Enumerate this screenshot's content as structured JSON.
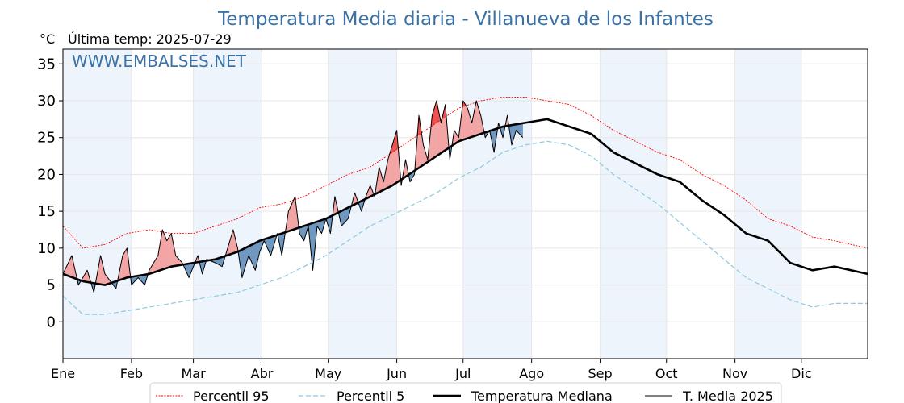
{
  "chart_data": {
    "type": "line",
    "title": "Temperatura Media diaria - Villanueva de los Infantes",
    "unit_label": "°C",
    "last_temp_label": "Última temp: 2025-07-29",
    "watermark": "WWW.EMBALSES.NET",
    "ylim": [
      -5,
      37
    ],
    "yticks": [
      0,
      5,
      10,
      15,
      20,
      25,
      30,
      35
    ],
    "xlim": [
      1,
      365
    ],
    "months": [
      "Ene",
      "Feb",
      "Mar",
      "Abr",
      "May",
      "Jun",
      "Jul",
      "Ago",
      "Sep",
      "Oct",
      "Nov",
      "Dic"
    ],
    "month_start_days": [
      1,
      32,
      60,
      91,
      121,
      152,
      182,
      213,
      244,
      274,
      305,
      335
    ],
    "grid": true,
    "legend_position": "bottom",
    "colors": {
      "p95": "#ff0000",
      "p5": "#8ec8df",
      "median": "#000000",
      "year2025": "#000000",
      "above_fill": "#f3a5a5",
      "below_fill": "#6f98c0",
      "shade": "#eef4fb",
      "title": "#3a72a8"
    },
    "series": [
      {
        "name": "Percentil 95",
        "key": "p95",
        "points": [
          [
            1,
            13
          ],
          [
            10,
            10
          ],
          [
            20,
            10.5
          ],
          [
            30,
            12
          ],
          [
            40,
            12.5
          ],
          [
            50,
            12
          ],
          [
            60,
            12
          ],
          [
            70,
            13
          ],
          [
            80,
            14
          ],
          [
            90,
            15.5
          ],
          [
            100,
            16
          ],
          [
            110,
            17
          ],
          [
            120,
            18.5
          ],
          [
            130,
            20
          ],
          [
            140,
            21
          ],
          [
            150,
            23
          ],
          [
            160,
            25
          ],
          [
            170,
            27
          ],
          [
            180,
            29
          ],
          [
            190,
            30
          ],
          [
            200,
            30.5
          ],
          [
            210,
            30.5
          ],
          [
            220,
            30
          ],
          [
            230,
            29.5
          ],
          [
            240,
            28
          ],
          [
            250,
            26
          ],
          [
            260,
            24.5
          ],
          [
            270,
            23
          ],
          [
            280,
            22
          ],
          [
            290,
            20
          ],
          [
            300,
            18.5
          ],
          [
            310,
            16.5
          ],
          [
            320,
            14
          ],
          [
            330,
            13
          ],
          [
            340,
            11.5
          ],
          [
            350,
            11
          ],
          [
            365,
            10
          ]
        ]
      },
      {
        "name": "Percentil 5",
        "key": "p5",
        "points": [
          [
            1,
            3.5
          ],
          [
            10,
            1
          ],
          [
            20,
            1
          ],
          [
            30,
            1.5
          ],
          [
            40,
            2
          ],
          [
            50,
            2.5
          ],
          [
            60,
            3
          ],
          [
            70,
            3.5
          ],
          [
            80,
            4
          ],
          [
            90,
            5
          ],
          [
            100,
            6
          ],
          [
            110,
            7.5
          ],
          [
            120,
            9
          ],
          [
            130,
            11
          ],
          [
            140,
            13
          ],
          [
            150,
            14.5
          ],
          [
            160,
            16
          ],
          [
            170,
            17.5
          ],
          [
            180,
            19.5
          ],
          [
            190,
            21
          ],
          [
            200,
            23
          ],
          [
            210,
            24
          ],
          [
            220,
            24.5
          ],
          [
            230,
            24
          ],
          [
            240,
            22.5
          ],
          [
            250,
            20
          ],
          [
            260,
            18
          ],
          [
            270,
            16
          ],
          [
            280,
            13.5
          ],
          [
            290,
            11
          ],
          [
            300,
            8.5
          ],
          [
            310,
            6
          ],
          [
            320,
            4.5
          ],
          [
            330,
            3
          ],
          [
            340,
            2
          ],
          [
            350,
            2.5
          ],
          [
            365,
            2.5
          ]
        ]
      },
      {
        "name": "Temperatura Mediana",
        "key": "median",
        "points": [
          [
            1,
            6.5
          ],
          [
            10,
            5.5
          ],
          [
            20,
            5
          ],
          [
            30,
            6
          ],
          [
            40,
            6.5
          ],
          [
            50,
            7.5
          ],
          [
            60,
            8
          ],
          [
            70,
            8.5
          ],
          [
            80,
            9.5
          ],
          [
            90,
            11
          ],
          [
            100,
            12
          ],
          [
            110,
            13
          ],
          [
            120,
            14
          ],
          [
            130,
            15.5
          ],
          [
            140,
            17
          ],
          [
            150,
            18.5
          ],
          [
            160,
            20.5
          ],
          [
            170,
            22.5
          ],
          [
            180,
            24.5
          ],
          [
            190,
            25.5
          ],
          [
            200,
            26.5
          ],
          [
            210,
            27
          ],
          [
            220,
            27.5
          ],
          [
            230,
            26.5
          ],
          [
            240,
            25.5
          ],
          [
            250,
            23
          ],
          [
            260,
            21.5
          ],
          [
            270,
            20
          ],
          [
            280,
            19
          ],
          [
            290,
            16.5
          ],
          [
            300,
            14.5
          ],
          [
            310,
            12
          ],
          [
            320,
            11
          ],
          [
            330,
            8
          ],
          [
            340,
            7
          ],
          [
            350,
            7.5
          ],
          [
            365,
            6.5
          ]
        ]
      },
      {
        "name": "T. Media 2025",
        "key": "year2025",
        "points": [
          [
            1,
            6.5
          ],
          [
            5,
            9
          ],
          [
            8,
            5
          ],
          [
            12,
            7
          ],
          [
            15,
            4
          ],
          [
            18,
            9
          ],
          [
            20,
            6.5
          ],
          [
            25,
            4.5
          ],
          [
            28,
            9
          ],
          [
            30,
            10
          ],
          [
            32,
            5
          ],
          [
            35,
            6
          ],
          [
            38,
            5
          ],
          [
            40,
            7
          ],
          [
            42,
            8
          ],
          [
            44,
            9
          ],
          [
            46,
            12.5
          ],
          [
            48,
            11
          ],
          [
            50,
            12
          ],
          [
            52,
            9
          ],
          [
            55,
            8
          ],
          [
            58,
            6
          ],
          [
            60,
            7.5
          ],
          [
            62,
            9
          ],
          [
            64,
            6.5
          ],
          [
            66,
            8.5
          ],
          [
            70,
            8
          ],
          [
            73,
            7.5
          ],
          [
            78,
            12.5
          ],
          [
            80,
            10
          ],
          [
            82,
            6
          ],
          [
            85,
            9
          ],
          [
            88,
            7
          ],
          [
            90,
            9.5
          ],
          [
            92,
            11
          ],
          [
            95,
            9
          ],
          [
            98,
            12
          ],
          [
            100,
            9
          ],
          [
            103,
            15
          ],
          [
            106,
            17
          ],
          [
            108,
            12
          ],
          [
            110,
            11
          ],
          [
            112,
            13
          ],
          [
            114,
            7
          ],
          [
            116,
            13
          ],
          [
            118,
            12
          ],
          [
            120,
            14
          ],
          [
            122,
            12
          ],
          [
            124,
            17
          ],
          [
            127,
            13
          ],
          [
            130,
            14
          ],
          [
            133,
            17.5
          ],
          [
            136,
            15
          ],
          [
            138,
            17
          ],
          [
            140,
            18.5
          ],
          [
            142,
            17
          ],
          [
            144,
            21
          ],
          [
            146,
            19
          ],
          [
            148,
            22
          ],
          [
            150,
            24
          ],
          [
            152,
            26
          ],
          [
            154,
            18.5
          ],
          [
            156,
            22
          ],
          [
            158,
            19
          ],
          [
            160,
            20
          ],
          [
            162,
            28
          ],
          [
            164,
            24
          ],
          [
            166,
            22
          ],
          [
            168,
            28
          ],
          [
            170,
            30
          ],
          [
            172,
            27
          ],
          [
            174,
            29.5
          ],
          [
            176,
            22
          ],
          [
            178,
            26
          ],
          [
            180,
            25
          ],
          [
            182,
            30
          ],
          [
            184,
            29
          ],
          [
            186,
            27
          ],
          [
            188,
            30
          ],
          [
            190,
            28
          ],
          [
            192,
            25
          ],
          [
            194,
            26
          ],
          [
            196,
            23
          ],
          [
            198,
            27
          ],
          [
            200,
            25
          ],
          [
            202,
            28
          ],
          [
            204,
            24
          ],
          [
            206,
            26
          ],
          [
            209,
            25
          ]
        ]
      }
    ]
  }
}
